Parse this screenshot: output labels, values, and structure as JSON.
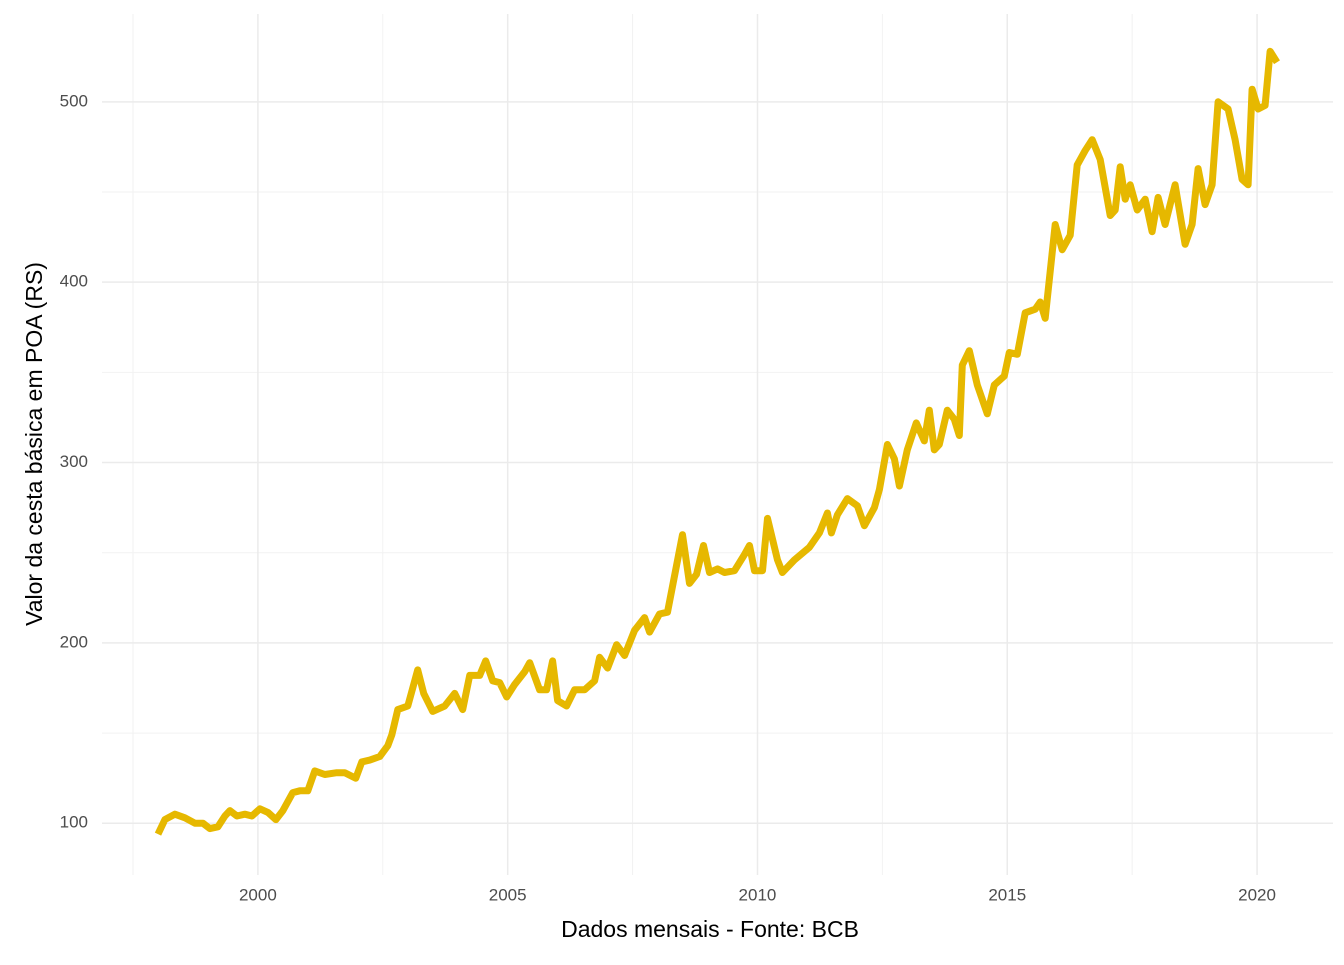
{
  "chart_data": {
    "type": "line",
    "x_label": "Dados mensais - Fonte: BCB",
    "y_label": "Valor da cesta básica em POA (RS)",
    "x": [
      1998.0,
      1998.14,
      1998.34,
      1998.54,
      1998.74,
      1998.9,
      1999.04,
      1999.2,
      1999.34,
      1999.44,
      1999.58,
      1999.74,
      1999.88,
      2000.04,
      2000.2,
      2000.36,
      2000.5,
      2000.7,
      2000.84,
      2001.0,
      2001.14,
      2001.34,
      2001.58,
      2001.74,
      2001.96,
      2002.08,
      2002.24,
      2002.44,
      2002.6,
      2002.68,
      2002.8,
      2003.0,
      2003.2,
      2003.32,
      2003.5,
      2003.74,
      2003.94,
      2004.1,
      2004.24,
      2004.44,
      2004.56,
      2004.7,
      2004.84,
      2004.98,
      2005.14,
      2005.34,
      2005.44,
      2005.64,
      2005.78,
      2005.9,
      2006.0,
      2006.18,
      2006.34,
      2006.54,
      2006.74,
      2006.84,
      2007.0,
      2007.18,
      2007.34,
      2007.54,
      2007.74,
      2007.84,
      2008.04,
      2008.2,
      2008.5,
      2008.64,
      2008.78,
      2008.92,
      2009.04,
      2009.2,
      2009.34,
      2009.54,
      2009.74,
      2009.84,
      2009.94,
      2010.1,
      2010.2,
      2010.4,
      2010.5,
      2010.74,
      2011.04,
      2011.24,
      2011.4,
      2011.48,
      2011.6,
      2011.8,
      2012.0,
      2012.14,
      2012.34,
      2012.44,
      2012.6,
      2012.74,
      2012.84,
      2013.0,
      2013.18,
      2013.34,
      2013.44,
      2013.54,
      2013.64,
      2013.8,
      2013.94,
      2014.04,
      2014.1,
      2014.24,
      2014.4,
      2014.6,
      2014.74,
      2014.94,
      2015.04,
      2015.2,
      2015.36,
      2015.56,
      2015.66,
      2015.76,
      2015.96,
      2016.1,
      2016.26,
      2016.4,
      2016.56,
      2016.7,
      2016.86,
      2017.06,
      2017.16,
      2017.26,
      2017.36,
      2017.46,
      2017.6,
      2017.76,
      2017.9,
      2018.02,
      2018.16,
      2018.36,
      2018.56,
      2018.7,
      2018.82,
      2018.96,
      2019.1,
      2019.22,
      2019.42,
      2019.56,
      2019.7,
      2019.82,
      2019.9,
      2020.02,
      2020.16,
      2020.26,
      2020.4
    ],
    "series": [
      {
        "color": "#e6b800",
        "values": [
          94,
          102,
          105,
          103,
          100,
          100,
          97,
          98,
          104,
          107,
          104,
          105,
          104,
          108,
          106,
          102,
          107,
          117,
          118,
          118,
          129,
          127,
          128,
          128,
          125,
          134,
          135,
          137,
          143,
          149,
          163,
          165,
          185,
          172,
          162,
          165,
          172,
          163,
          182,
          182,
          190,
          179,
          178,
          170,
          177,
          184,
          189,
          174,
          174,
          190,
          168,
          165,
          174,
          174,
          179,
          192,
          186,
          199,
          193,
          207,
          214,
          206,
          216,
          217,
          260,
          233,
          238,
          254,
          239,
          241,
          239,
          240,
          249,
          254,
          240,
          240,
          269,
          246,
          239,
          246,
          253,
          261,
          272,
          261,
          271,
          280,
          276,
          265,
          275,
          285,
          310,
          302,
          287,
          307,
          322,
          312,
          329,
          307,
          310,
          329,
          324,
          315,
          354,
          362,
          343,
          327,
          343,
          348,
          361,
          360,
          383,
          385,
          389,
          380,
          432,
          418,
          426,
          465,
          473,
          479,
          468,
          437,
          440,
          464,
          446,
          454,
          440,
          446,
          428,
          447,
          432,
          454,
          421,
          432,
          463,
          443,
          454,
          500,
          496,
          479,
          457,
          454,
          507,
          496,
          498,
          528,
          522
        ]
      }
    ],
    "xlim": [
      1996.88,
      2021.52
    ],
    "xticks": [
      2000,
      2005,
      2010,
      2015,
      2020
    ],
    "ylim": [
      71.3,
      548.7
    ],
    "yticks": [
      100,
      200,
      300,
      400,
      500
    ],
    "grid": true
  }
}
